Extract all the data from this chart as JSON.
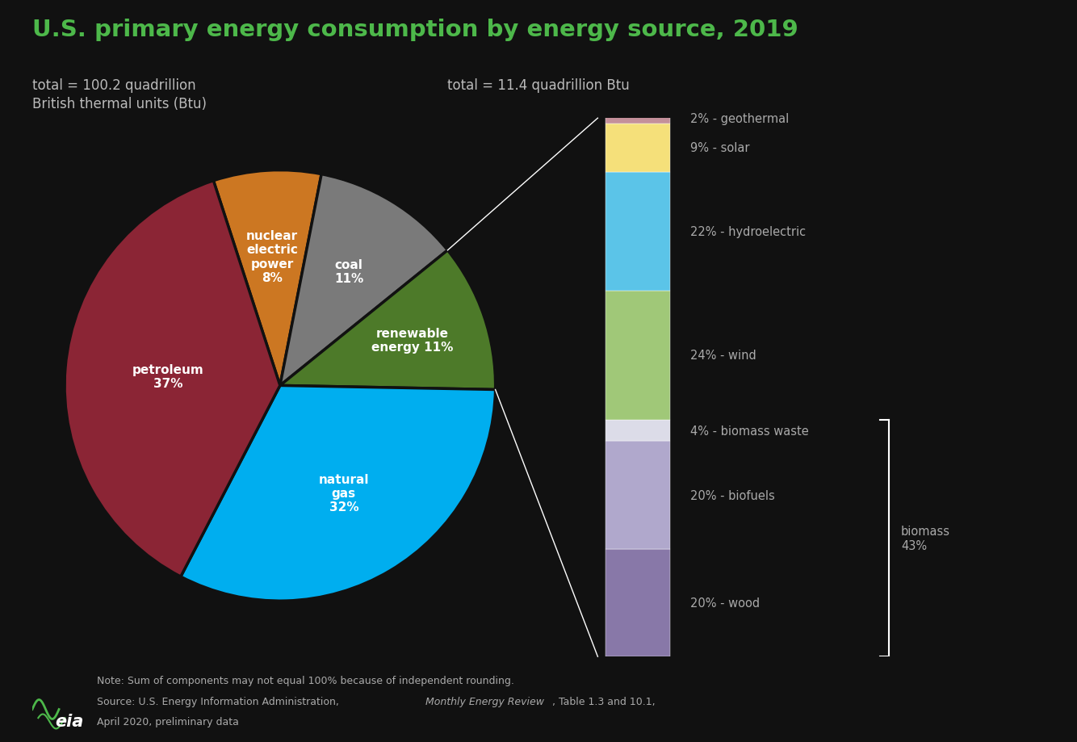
{
  "title": "U.S. primary energy consumption by energy source, 2019",
  "title_color": "#4db84a",
  "background_color": "#111111",
  "subtitle_left": "total = 100.2 quadrillion\nBritish thermal units (Btu)",
  "subtitle_right": "total = 11.4 quadrillion Btu",
  "pie_slices": [
    {
      "label": "petroleum\n37%",
      "value": 37,
      "color": "#8B2535"
    },
    {
      "label": "natural\ngas\n32%",
      "value": 32,
      "color": "#00AEEF"
    },
    {
      "label": "renewable\nenergy 11%",
      "value": 11,
      "color": "#4d7a29"
    },
    {
      "label": "coal\n11%",
      "value": 11,
      "color": "#7a7a7a"
    },
    {
      "label": "nuclear\nelectric\npower\n8%",
      "value": 8,
      "color": "#CC7722"
    }
  ],
  "bar_segments": [
    {
      "label": "2% - geothermal",
      "value": 2,
      "color": "#C4909A"
    },
    {
      "label": "9% - solar",
      "value": 9,
      "color": "#F5E07A"
    },
    {
      "label": "22% - hydroelectric",
      "value": 22,
      "color": "#5BC4E8"
    },
    {
      "label": "24% - wind",
      "value": 24,
      "color": "#A0C878"
    },
    {
      "label": "4% - biomass waste",
      "value": 4,
      "color": "#DCDCE8"
    },
    {
      "label": "20% - biofuels",
      "value": 20,
      "color": "#B0A8CC"
    },
    {
      "label": "20% - wood",
      "value": 20,
      "color": "#8878A8"
    }
  ],
  "biomass_label": "biomass\n43%",
  "text_color": "#bbbbbb",
  "label_color": "#aaaaaa"
}
